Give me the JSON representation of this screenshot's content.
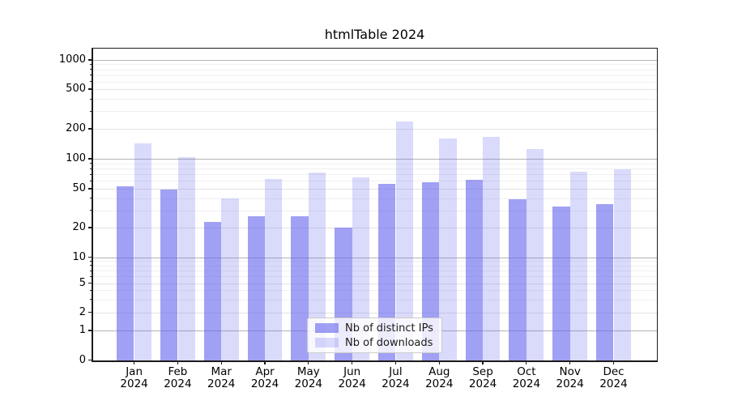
{
  "title": "htmlTable 2024",
  "chart_data": {
    "type": "bar",
    "title": "htmlTable 2024",
    "categories": [
      {
        "month": "Jan",
        "year": "2024"
      },
      {
        "month": "Feb",
        "year": "2024"
      },
      {
        "month": "Mar",
        "year": "2024"
      },
      {
        "month": "Apr",
        "year": "2024"
      },
      {
        "month": "May",
        "year": "2024"
      },
      {
        "month": "Jun",
        "year": "2024"
      },
      {
        "month": "Jul",
        "year": "2024"
      },
      {
        "month": "Aug",
        "year": "2024"
      },
      {
        "month": "Sep",
        "year": "2024"
      },
      {
        "month": "Oct",
        "year": "2024"
      },
      {
        "month": "Nov",
        "year": "2024"
      },
      {
        "month": "Dec",
        "year": "2024"
      }
    ],
    "series": [
      {
        "name": "Nb of distinct IPs",
        "color": "rgba(102,102,238,0.62)",
        "rendered_color": "#a5a5f2",
        "values": [
          53,
          49,
          23,
          26,
          26,
          20,
          56,
          58,
          61,
          39,
          33,
          35
        ]
      },
      {
        "name": "Nb of downloads",
        "color": "rgba(102,102,238,0.24)",
        "rendered_color": "#d9d9fa",
        "values": [
          144,
          103,
          40,
          63,
          73,
          65,
          235,
          161,
          167,
          125,
          74,
          78
        ]
      }
    ],
    "xlabel": "",
    "ylabel": "",
    "y_axis": {
      "scale": "quasi-log (symlog/asinh-like)",
      "tick_values": [
        0,
        1,
        2,
        5,
        10,
        20,
        50,
        100,
        200,
        500,
        1000
      ],
      "tick_labels": [
        "0",
        "1",
        "2",
        "5",
        "10",
        "20",
        "50",
        "100",
        "200",
        "500",
        "1000"
      ],
      "range": [
        0,
        1400
      ]
    },
    "grid": {
      "horizontal_major": true,
      "horizontal_minor": true,
      "vertical": false
    },
    "legend_position": "lower center"
  },
  "legend": {
    "items": [
      {
        "label": "Nb of distinct IPs"
      },
      {
        "label": "Nb of downloads"
      }
    ]
  },
  "colors": {
    "background": "#ffffff",
    "bar_base": "#6666ee",
    "major_grid": "#b3b3b3",
    "minor_grid": "#f0f0f0",
    "axis": "#1a1a1a",
    "text": "#000000"
  }
}
